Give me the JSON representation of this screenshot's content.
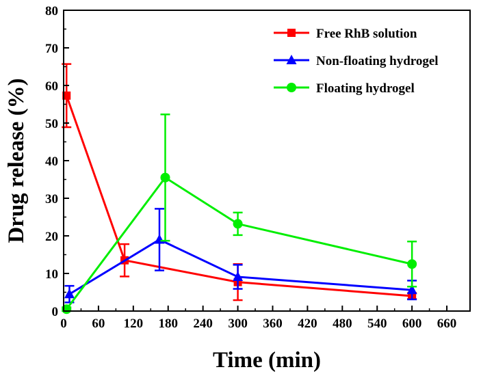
{
  "chart_data": {
    "type": "line",
    "xlabel": "Time (min)",
    "ylabel": "Drug release (%)",
    "xlim": [
      0,
      700
    ],
    "ylim": [
      0,
      80
    ],
    "xticks": [
      0,
      60,
      120,
      180,
      240,
      300,
      360,
      420,
      480,
      540,
      600,
      660
    ],
    "yticks": [
      0,
      10,
      20,
      30,
      40,
      50,
      60,
      70,
      80
    ],
    "grid": false,
    "legend_position": "top-right",
    "series": [
      {
        "name": "Free RhB solution",
        "color": "#ff0000",
        "marker": "square",
        "x": [
          5,
          105,
          300,
          600
        ],
        "y": [
          57.3,
          13.5,
          7.7,
          4.0
        ],
        "error": [
          8.4,
          4.3,
          4.8,
          0.8
        ]
      },
      {
        "name": "Non-floating hydrogel",
        "color": "#0000ff",
        "marker": "triangle",
        "x": [
          10,
          165,
          300,
          600
        ],
        "y": [
          4.5,
          19.0,
          9.1,
          5.6
        ],
        "error": [
          2.2,
          8.2,
          3.2,
          2.5
        ]
      },
      {
        "name": "Floating hydrogel",
        "color": "#00ee00",
        "marker": "circle",
        "x": [
          5,
          175,
          300,
          600
        ],
        "y": [
          0.5,
          35.5,
          23.2,
          12.5
        ],
        "error": [
          0.5,
          16.8,
          3.0,
          6.0
        ]
      }
    ]
  }
}
